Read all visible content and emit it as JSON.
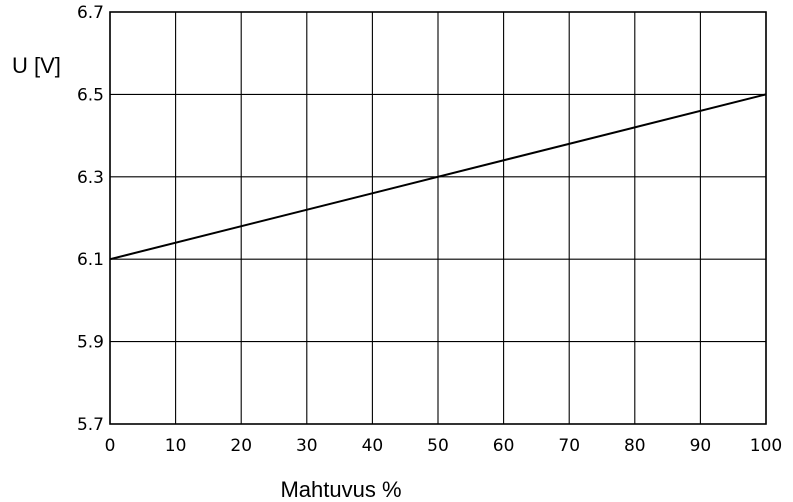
{
  "chart_data": {
    "type": "line",
    "title": "",
    "xlabel": "Mahtuvus %",
    "ylabel": "U [V]",
    "xlim": [
      0,
      100
    ],
    "ylim": [
      5.7,
      6.7
    ],
    "x_ticks": [
      0,
      10,
      20,
      30,
      40,
      50,
      60,
      70,
      80,
      90,
      100
    ],
    "x_tick_labels": [
      "0",
      "10",
      "20",
      "30",
      "40",
      "50",
      "60",
      "70",
      "80",
      "90",
      "100"
    ],
    "y_ticks": [
      5.7,
      5.9,
      6.1,
      6.3,
      6.5,
      6.7
    ],
    "y_tick_labels": [
      "5.7",
      "5.9",
      "6.1",
      "6.3",
      "6.5",
      "6.7"
    ],
    "grid": true,
    "legend": false,
    "series": [
      {
        "x": [
          0,
          100
        ],
        "y": [
          6.1,
          6.5
        ],
        "color": "#000000"
      }
    ]
  }
}
